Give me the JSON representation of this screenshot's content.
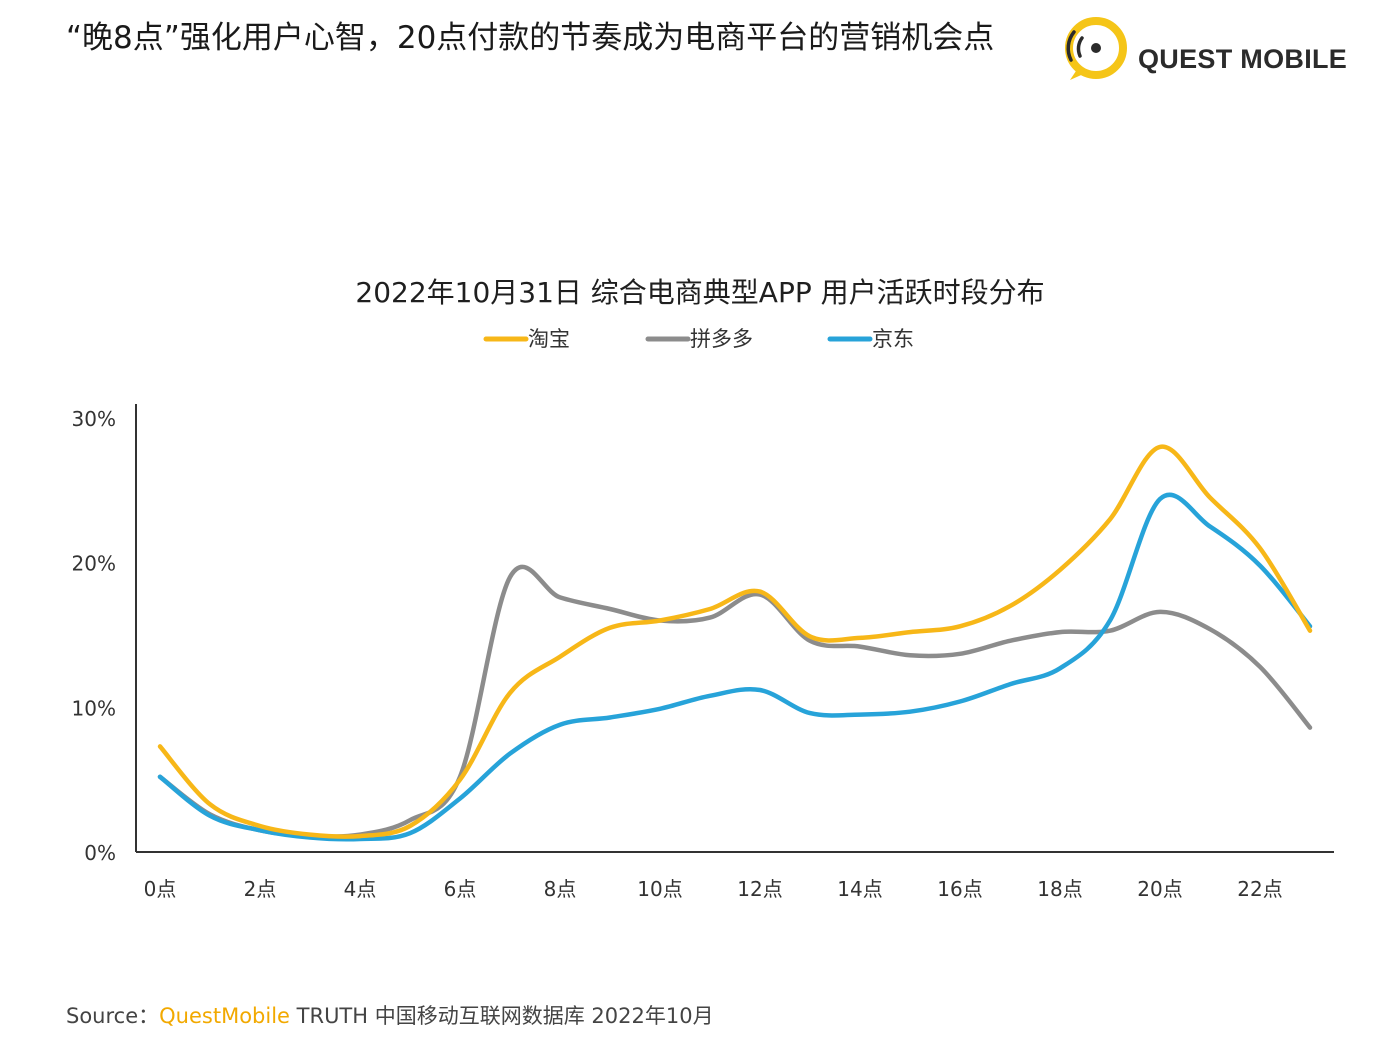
{
  "headline": "“晚8点”强化用户心智，20点付款的节奏成为电商平台的营销机会点",
  "logo": {
    "text": "QUEST MOBILE",
    "accent": "#f5c518"
  },
  "source": {
    "prefix": "Source：",
    "brand": "QuestMobile",
    "rest": " TRUTH 中国移动互联网数据库 2022年10月"
  },
  "chart_data": {
    "type": "line",
    "title": "2022年10月31日 综合电商典型APP 用户活跃时段分布",
    "legend_position": "top-center",
    "grid": false,
    "x": [
      0,
      1,
      2,
      3,
      4,
      5,
      6,
      7,
      8,
      9,
      10,
      11,
      12,
      13,
      14,
      15,
      16,
      17,
      18,
      19,
      20,
      21,
      22,
      23
    ],
    "x_tick_labels": [
      "0点",
      "2点",
      "4点",
      "6点",
      "8点",
      "10点",
      "12点",
      "14点",
      "16点",
      "18点",
      "20点",
      "22点"
    ],
    "x_tick_values": [
      0,
      2,
      4,
      6,
      8,
      10,
      12,
      14,
      16,
      18,
      20,
      22
    ],
    "ylim": [
      0,
      30
    ],
    "y_tick_values": [
      0,
      10,
      20,
      30
    ],
    "y_tick_labels": [
      "0%",
      "10%",
      "20%",
      "30%"
    ],
    "series": [
      {
        "name": "淘宝",
        "color": "#f7b718",
        "values": [
          7.3,
          3.3,
          1.8,
          1.2,
          1.1,
          1.8,
          5.0,
          11.0,
          13.5,
          15.5,
          16.0,
          16.8,
          18.0,
          14.9,
          14.8,
          15.2,
          15.6,
          17.0,
          19.5,
          23.0,
          28.0,
          24.5,
          21.0,
          15.3
        ]
      },
      {
        "name": "拼多多",
        "color": "#8c8c8c",
        "values": [
          5.2,
          2.6,
          1.5,
          1.1,
          1.2,
          2.2,
          5.2,
          19.0,
          17.6,
          16.8,
          16.0,
          16.2,
          17.8,
          14.6,
          14.2,
          13.6,
          13.7,
          14.6,
          15.2,
          15.3,
          16.6,
          15.4,
          12.8,
          8.6
        ]
      },
      {
        "name": "京东",
        "color": "#27a3d9",
        "values": [
          5.2,
          2.5,
          1.5,
          1.0,
          0.9,
          1.3,
          3.7,
          6.8,
          8.8,
          9.3,
          9.9,
          10.8,
          11.2,
          9.6,
          9.5,
          9.7,
          10.4,
          11.6,
          12.7,
          16.0,
          24.4,
          22.5,
          19.8,
          15.6
        ]
      }
    ]
  }
}
